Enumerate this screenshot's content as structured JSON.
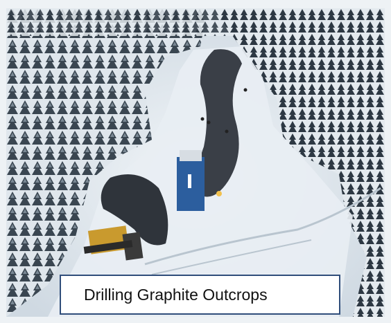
{
  "photo": {
    "subject": "aerial-winter-drilling-site",
    "colors": {
      "snow": "#e8eef3",
      "snow_shadow": "#c3ced8",
      "forest_dark": "#2b3640",
      "forest_mid": "#55636f",
      "trench": "#3a3f47",
      "drill_rig": "#2c5e9e",
      "bulldozer": "#c99a2e"
    }
  },
  "caption": {
    "text": "Drilling Graphite Outcrops"
  }
}
